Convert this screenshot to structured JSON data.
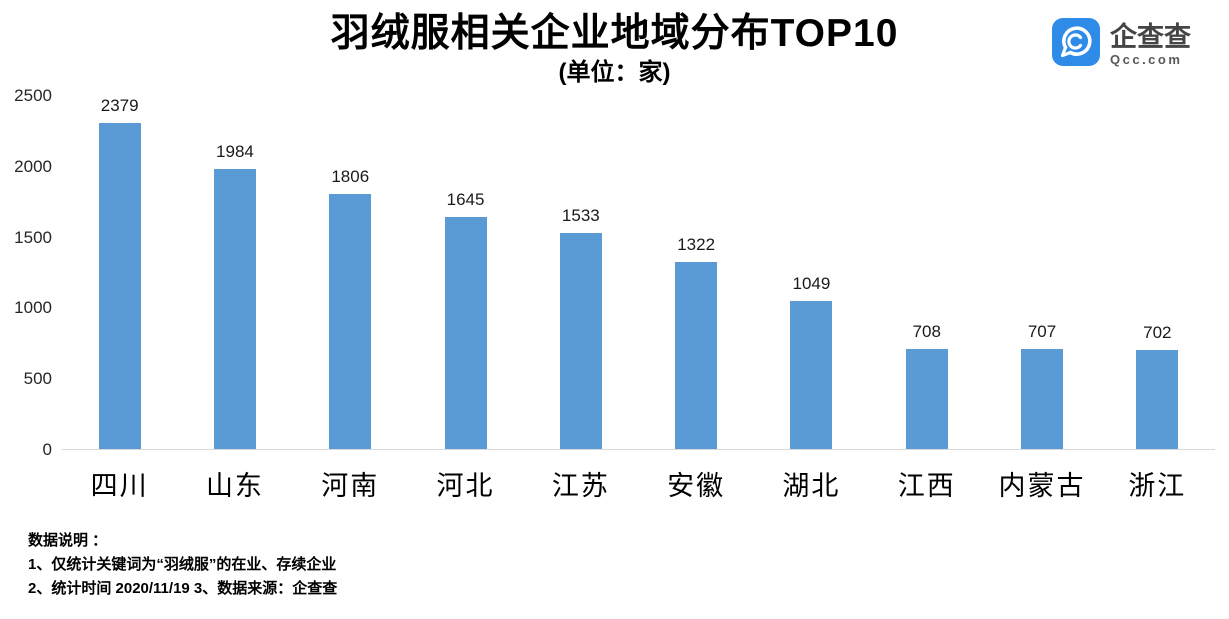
{
  "header": {
    "title": "羽绒服相关企业地域分布TOP10",
    "subtitle": "(单位：家)"
  },
  "logo": {
    "name": "企查查",
    "domain": "Qcc.com",
    "brand_color": "#2E8BE8"
  },
  "chart_data": {
    "type": "bar",
    "title": "羽绒服相关企业地域分布TOP10",
    "unit_label": "(单位：家)",
    "categories": [
      "四川",
      "山东",
      "河南",
      "河北",
      "江苏",
      "安徽",
      "湖北",
      "江西",
      "内蒙古",
      "浙江"
    ],
    "values": [
      2379,
      1984,
      1806,
      1645,
      1533,
      1322,
      1049,
      708,
      707,
      702
    ],
    "ylim": [
      0,
      2500
    ],
    "y_ticks": [
      0,
      500,
      1000,
      1500,
      2000,
      2500
    ],
    "bar_color": "#5B9BD5",
    "baseline_color": "#d9d9d9",
    "grid": false,
    "value_labels": true,
    "legend": "none"
  },
  "notes": {
    "heading": "数据说明 ：",
    "line1": "1、仅统计关键词为“羽绒服”的在业、存续企业",
    "line2": "2、统计时间  2020/11/19    3、数据来源：企查查"
  }
}
